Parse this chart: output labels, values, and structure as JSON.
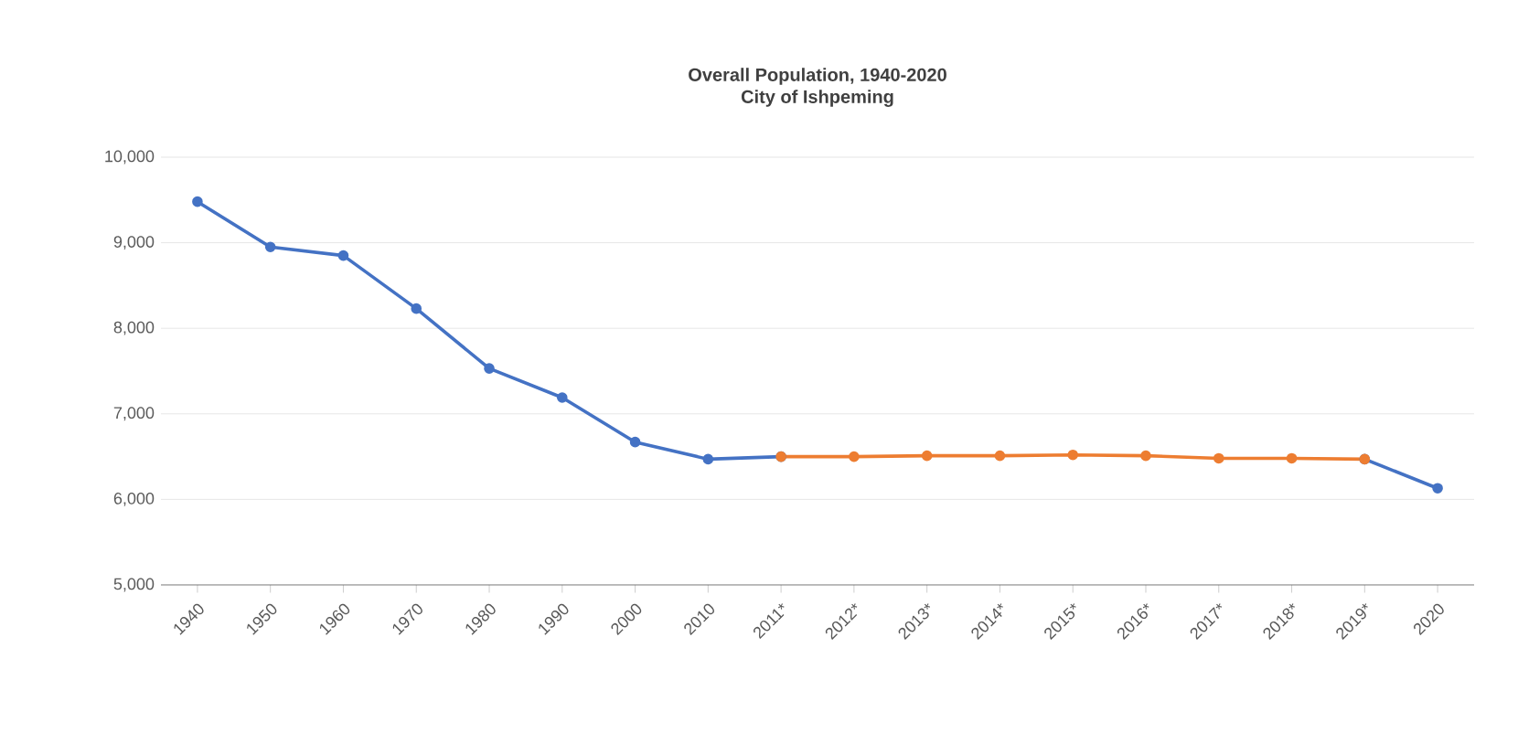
{
  "chart_data": {
    "type": "line",
    "title": "Overall Population, 1940-2020",
    "subtitle": "City of Ishpeming",
    "categories": [
      "1940",
      "1950",
      "1960",
      "1970",
      "1980",
      "1990",
      "2000",
      "2010",
      "2011*",
      "2012*",
      "2013*",
      "2014*",
      "2015*",
      "2016*",
      "2017*",
      "2018*",
      "2019*",
      "2020"
    ],
    "series": [
      {
        "color": "#4472c4",
        "values": [
          9480,
          8950,
          8850,
          8230,
          7530,
          7190,
          6670,
          6470,
          6500,
          null,
          null,
          null,
          null,
          null,
          null,
          null,
          6470,
          6130
        ]
      },
      {
        "color": "#ed7d31",
        "values": [
          null,
          null,
          null,
          null,
          null,
          null,
          null,
          null,
          6500,
          6500,
          6510,
          6510,
          6520,
          6510,
          6480,
          6480,
          6470,
          null
        ]
      }
    ],
    "ylim": [
      5000,
      10000
    ],
    "yticks": [
      {
        "value": 5000,
        "label": "5,000"
      },
      {
        "value": 6000,
        "label": "6,000"
      },
      {
        "value": 7000,
        "label": "7,000"
      },
      {
        "value": 8000,
        "label": "8,000"
      },
      {
        "value": 9000,
        "label": "9,000"
      },
      {
        "value": 10000,
        "label": "10,000"
      }
    ],
    "grid": "y",
    "marker": "circle",
    "line_style": "solid"
  }
}
